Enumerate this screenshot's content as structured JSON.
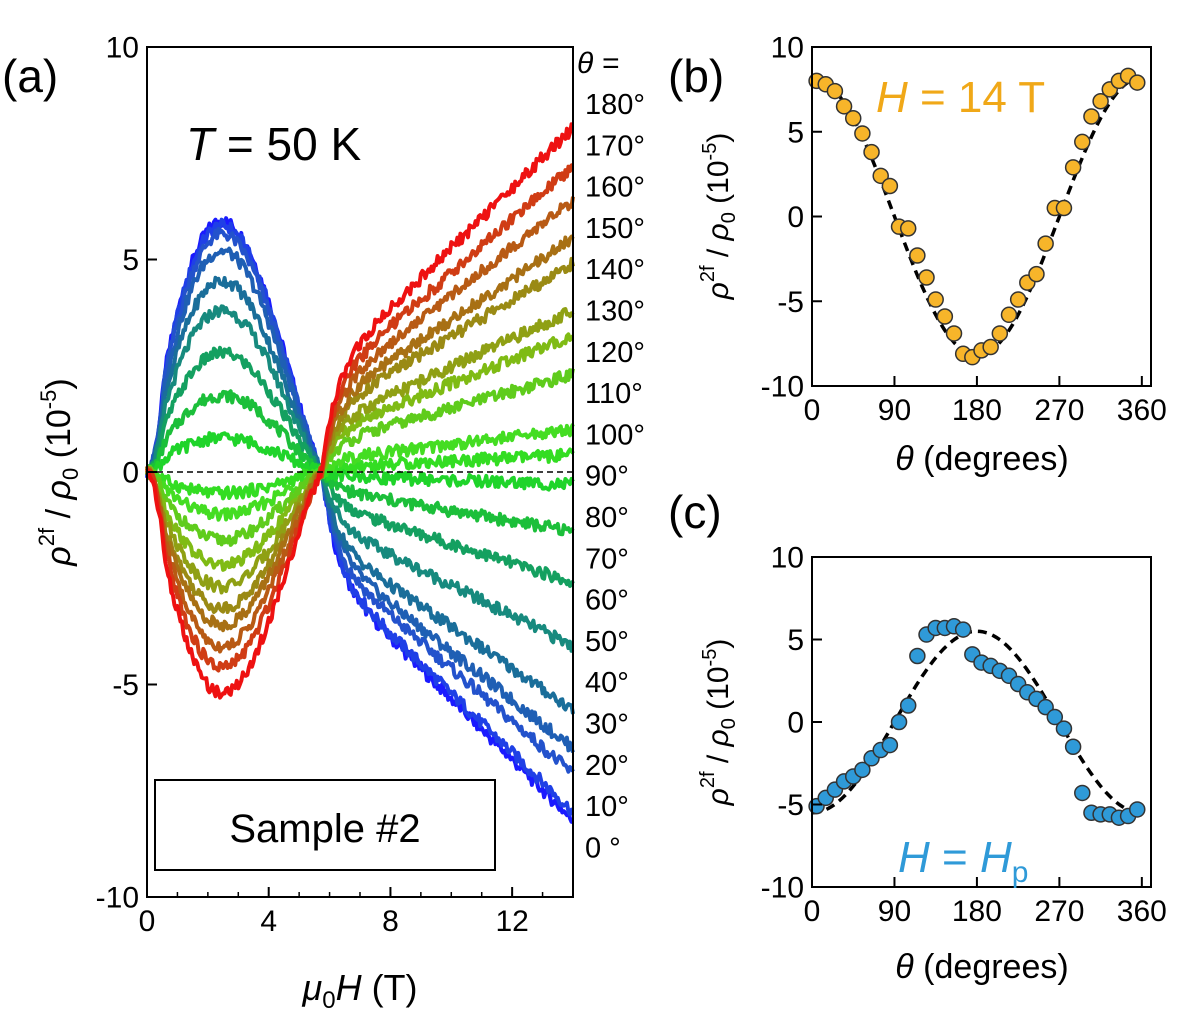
{
  "chart_data": [
    {
      "panel": "(a)",
      "type": "line",
      "title": "T = 50 K",
      "title_parts": {
        "var": "T",
        "rest": " = 50 K"
      },
      "xlabel": "μ0H (T)",
      "xlabel_parts": {
        "mu": "μ",
        "sub0": "0",
        "H": "H",
        "unit": " (T)"
      },
      "ylabel": "ρ2f / ρ0 (10-5)",
      "ylabel_parts": {
        "rho": "ρ",
        "sup": "2f",
        "slash": " / ",
        "rho0": "ρ",
        "sub0": "0",
        "paren": " (10",
        "exp": "-5",
        "close": ")"
      },
      "xlim": [
        0,
        14
      ],
      "ylim": [
        -10,
        10
      ],
      "xticks": [
        0,
        4,
        8,
        12
      ],
      "yticks": [
        -10,
        -5,
        0,
        5,
        10
      ],
      "zero_line": "dashed",
      "legend_title": "θ =",
      "legend_box": "Sample #2",
      "series": [
        {
          "name": "0 °",
          "theta": 0,
          "color": "#1a1aff",
          "peak": 5.9,
          "end": -8.2
        },
        {
          "name": "10°",
          "theta": 10,
          "color": "#1f40e6",
          "peak": 5.8,
          "end": -8.0
        },
        {
          "name": "20°",
          "theta": 20,
          "color": "#2352cc",
          "peak": 5.6,
          "end": -7.1
        },
        {
          "name": "30°",
          "theta": 30,
          "color": "#1f5fb4",
          "peak": 5.2,
          "end": -6.5
        },
        {
          "name": "40°",
          "theta": 40,
          "color": "#1a6e9a",
          "peak": 4.5,
          "end": -5.6
        },
        {
          "name": "50°",
          "theta": 50,
          "color": "#178a7e",
          "peak": 3.8,
          "end": -4.1
        },
        {
          "name": "60°",
          "theta": 60,
          "color": "#14a060",
          "peak": 2.8,
          "end": -2.6
        },
        {
          "name": "70°",
          "theta": 70,
          "color": "#1cbf3a",
          "peak": 1.8,
          "end": -1.4
        },
        {
          "name": "80°",
          "theta": 80,
          "color": "#1fd42a",
          "peak": 0.8,
          "end": -0.3
        },
        {
          "name": "90°",
          "theta": 90,
          "color": "#33dd22",
          "peak": -0.5,
          "end": 0.4
        },
        {
          "name": "100°",
          "theta": 100,
          "color": "#44dd22",
          "peak": -1.0,
          "end": 1.0
        },
        {
          "name": "110°",
          "theta": 110,
          "color": "#5fcc1c",
          "peak": -1.6,
          "end": 2.3
        },
        {
          "name": "120°",
          "theta": 120,
          "color": "#7fbb14",
          "peak": -2.2,
          "end": 3.2
        },
        {
          "name": "130°",
          "theta": 130,
          "color": "#8fa014",
          "peak": -2.7,
          "end": 3.8
        },
        {
          "name": "140°",
          "theta": 140,
          "color": "#9a8a14",
          "peak": -3.2,
          "end": 4.9
        },
        {
          "name": "150°",
          "theta": 150,
          "color": "#a87014",
          "peak": -3.6,
          "end": 5.5
        },
        {
          "name": "160°",
          "theta": 160,
          "color": "#b85a14",
          "peak": -4.1,
          "end": 6.4
        },
        {
          "name": "170°",
          "theta": 170,
          "color": "#d03c14",
          "peak": -4.6,
          "end": 7.2
        },
        {
          "name": "180°",
          "theta": 180,
          "color": "#ee1111",
          "peak": -5.2,
          "end": 8.1
        }
      ]
    },
    {
      "panel": "(b)",
      "type": "scatter",
      "title": "H = 14 T",
      "title_parts": {
        "var": "H",
        "rest": " = 14 T"
      },
      "title_color": "#f0a818",
      "marker_color": "#f7b52a",
      "xlabel": "θ (degrees)",
      "xlabel_parts": {
        "var": "θ",
        "rest": " (degrees)"
      },
      "ylabel": "ρ2f / ρ0 (10-5)",
      "xlim": [
        0,
        370
      ],
      "ylim": [
        -10,
        10
      ],
      "xticks": [
        0,
        90,
        180,
        270,
        360
      ],
      "yticks": [
        -10,
        -5,
        0,
        5,
        10
      ],
      "fit": {
        "style": "dashed",
        "model": "A cos θ",
        "A": 8.2
      },
      "x": [
        5,
        15,
        25,
        35,
        45,
        55,
        65,
        75,
        85,
        95,
        105,
        115,
        125,
        135,
        145,
        155,
        165,
        175,
        185,
        195,
        205,
        215,
        225,
        235,
        245,
        255,
        265,
        275,
        285,
        295,
        305,
        315,
        325,
        335,
        345,
        355
      ],
      "y": [
        8.0,
        7.8,
        7.4,
        6.5,
        5.8,
        4.9,
        3.8,
        2.4,
        1.8,
        -0.6,
        -0.7,
        -2.3,
        -3.6,
        -4.9,
        -5.9,
        -6.9,
        -8.1,
        -8.3,
        -7.9,
        -7.7,
        -6.9,
        -5.8,
        -4.9,
        -3.9,
        -3.4,
        -1.6,
        0.5,
        0.5,
        2.9,
        4.4,
        5.9,
        6.8,
        7.5,
        8.0,
        8.3,
        7.9
      ]
    },
    {
      "panel": "(c)",
      "type": "scatter",
      "title": "H = Hp",
      "title_parts": {
        "var": "H",
        "eq": " = ",
        "var2": "H",
        "sub": "p"
      },
      "title_color": "#2f9ad8",
      "marker_color": "#2f9ad8",
      "xlabel": "θ (degrees)",
      "xlabel_parts": {
        "var": "θ",
        "rest": " (degrees)"
      },
      "ylabel": "ρ2f / ρ0 (10-5)",
      "xlim": [
        0,
        370
      ],
      "ylim": [
        -10,
        10
      ],
      "xticks": [
        0,
        90,
        180,
        270,
        360
      ],
      "yticks": [
        -10,
        -5,
        0,
        5,
        10
      ],
      "fit": {
        "style": "dashed",
        "model": "-A cos θ",
        "A": 5.5
      },
      "x": [
        5,
        15,
        25,
        35,
        45,
        55,
        65,
        75,
        85,
        95,
        105,
        115,
        125,
        135,
        145,
        155,
        165,
        175,
        185,
        195,
        205,
        215,
        225,
        235,
        245,
        255,
        265,
        275,
        285,
        295,
        305,
        315,
        325,
        335,
        345,
        355
      ],
      "y": [
        -5.1,
        -4.6,
        -4.1,
        -3.6,
        -3.3,
        -2.9,
        -2.2,
        -1.7,
        -1.4,
        0.0,
        1.0,
        4.0,
        5.3,
        5.7,
        5.7,
        5.8,
        5.6,
        4.1,
        3.6,
        3.4,
        3.1,
        2.8,
        2.3,
        1.8,
        1.4,
        0.9,
        0.3,
        -0.4,
        -1.5,
        -4.3,
        -5.5,
        -5.6,
        -5.6,
        -5.8,
        -5.7,
        -5.3
      ]
    }
  ]
}
